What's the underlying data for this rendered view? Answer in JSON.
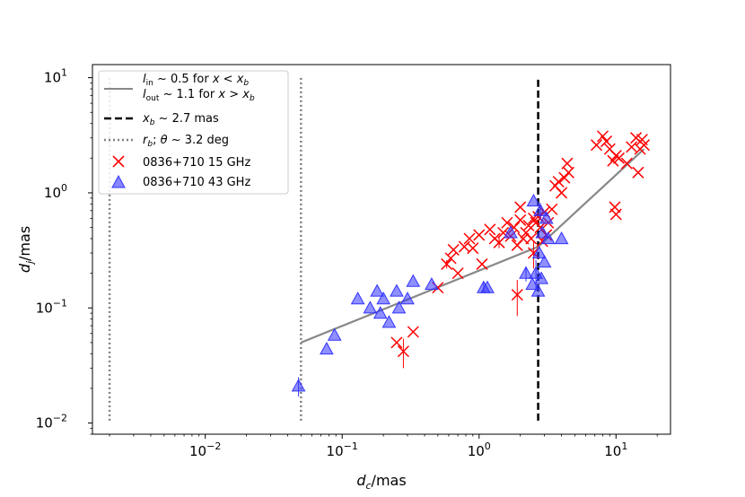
{
  "chart_data": {
    "type": "scatter",
    "xscale": "log",
    "yscale": "log",
    "xlim": [
      0.0015,
      25
    ],
    "ylim": [
      0.008,
      13
    ],
    "xlabel": "d_c/mas",
    "ylabel": "d_j/mas",
    "xticks": [
      {
        "value": 0.01,
        "mant": "10",
        "exp": "−2"
      },
      {
        "value": 0.1,
        "mant": "10",
        "exp": "−1"
      },
      {
        "value": 1,
        "mant": "10",
        "exp": "0"
      },
      {
        "value": 10,
        "mant": "10",
        "exp": "1"
      }
    ],
    "yticks": [
      {
        "value": 0.01,
        "mant": "10",
        "exp": "−2"
      },
      {
        "value": 0.1,
        "mant": "10",
        "exp": "−1"
      },
      {
        "value": 1,
        "mant": "10",
        "exp": "0"
      },
      {
        "value": 10,
        "mant": "10",
        "exp": "1"
      }
    ],
    "legend_position": "upper-left",
    "legend": {
      "fit_line1": "l_in ~ 0.5 for x < x_b",
      "fit_line2": "l_out ~ 1.1 for x > x_b",
      "break_label": "x_b ~ 2.7 mas",
      "rb_label": "r_b; θ ~ 3.2 deg",
      "series15": "0836+710 15 GHz",
      "series43": "0836+710 43 GHz"
    },
    "colors": {
      "fit": "#888888",
      "break": "#000000",
      "rb": "#808080",
      "s15": "#ff0000",
      "s43": "#3333ff"
    },
    "fit_line": {
      "x": [
        0.05,
        2.7,
        16
      ],
      "y": [
        0.05,
        0.34,
        2.4
      ]
    },
    "break_x": 2.7,
    "break_ylim": [
      0.0105,
      10
    ],
    "rb_lines": [
      {
        "x": 0.002,
        "ylim": [
          0.0105,
          10
        ]
      },
      {
        "x": 0.05,
        "ylim": [
          0.0105,
          10
        ]
      }
    ],
    "series_15GHz": {
      "name": "0836+710 15 GHz",
      "points": [
        [
          0.25,
          0.05,
          0
        ],
        [
          0.28,
          0.042,
          0.012
        ],
        [
          0.33,
          0.062,
          0
        ],
        [
          0.5,
          0.15,
          0
        ],
        [
          0.58,
          0.24,
          0.02
        ],
        [
          0.62,
          0.27,
          0
        ],
        [
          0.65,
          0.32,
          0
        ],
        [
          0.7,
          0.2,
          0
        ],
        [
          0.78,
          0.34,
          0
        ],
        [
          0.85,
          0.4,
          0
        ],
        [
          0.9,
          0.33,
          0
        ],
        [
          1.0,
          0.43,
          0
        ],
        [
          1.05,
          0.24,
          0
        ],
        [
          1.2,
          0.48,
          0
        ],
        [
          1.3,
          0.4,
          0
        ],
        [
          1.4,
          0.37,
          0.04
        ],
        [
          1.5,
          0.45,
          0
        ],
        [
          1.6,
          0.55,
          0
        ],
        [
          1.7,
          0.42,
          0
        ],
        [
          1.8,
          0.5,
          0
        ],
        [
          1.9,
          0.35,
          0
        ],
        [
          1.9,
          0.13,
          0.045
        ],
        [
          2.0,
          0.58,
          0
        ],
        [
          2.0,
          0.75,
          0
        ],
        [
          2.1,
          0.4,
          0
        ],
        [
          2.2,
          0.45,
          0
        ],
        [
          2.3,
          0.52,
          0
        ],
        [
          2.4,
          0.4,
          0
        ],
        [
          2.5,
          0.6,
          0
        ],
        [
          2.5,
          0.3,
          0.08
        ],
        [
          2.6,
          0.55,
          0
        ],
        [
          2.7,
          0.62,
          0
        ],
        [
          2.8,
          0.5,
          0
        ],
        [
          2.9,
          0.38,
          0
        ],
        [
          3.0,
          0.68,
          0
        ],
        [
          3.1,
          0.43,
          0
        ],
        [
          3.2,
          0.55,
          0
        ],
        [
          3.4,
          0.72,
          0
        ],
        [
          3.6,
          1.15,
          0
        ],
        [
          3.8,
          1.25,
          0
        ],
        [
          4.0,
          1.0,
          0
        ],
        [
          4.2,
          1.35,
          0
        ],
        [
          4.4,
          1.8,
          0
        ],
        [
          4.5,
          1.5,
          0
        ],
        [
          7.2,
          2.6,
          0
        ],
        [
          8.0,
          3.1,
          0
        ],
        [
          8.5,
          2.8,
          0
        ],
        [
          9.0,
          2.4,
          0
        ],
        [
          9.5,
          1.9,
          0
        ],
        [
          10.0,
          2.1,
          0
        ],
        [
          10.0,
          0.65,
          0
        ],
        [
          9.8,
          0.75,
          0
        ],
        [
          10.5,
          2.0,
          0
        ],
        [
          12.0,
          1.8,
          0
        ],
        [
          13.0,
          2.5,
          0
        ],
        [
          14.0,
          3.0,
          0
        ],
        [
          14.5,
          1.5,
          0
        ],
        [
          15.0,
          2.4,
          0
        ],
        [
          15.5,
          2.9,
          0
        ],
        [
          16.0,
          2.6,
          0
        ]
      ]
    },
    "series_43GHz": {
      "name": "0836+710 43 GHz",
      "points": [
        [
          0.048,
          0.021,
          0.004
        ],
        [
          0.077,
          0.044,
          0
        ],
        [
          0.088,
          0.058,
          0
        ],
        [
          0.13,
          0.12,
          0
        ],
        [
          0.16,
          0.1,
          0
        ],
        [
          0.18,
          0.14,
          0
        ],
        [
          0.19,
          0.09,
          0
        ],
        [
          0.2,
          0.12,
          0
        ],
        [
          0.22,
          0.075,
          0
        ],
        [
          0.25,
          0.14,
          0
        ],
        [
          0.26,
          0.1,
          0
        ],
        [
          0.3,
          0.12,
          0
        ],
        [
          0.33,
          0.17,
          0
        ],
        [
          0.45,
          0.16,
          0
        ],
        [
          1.08,
          0.15,
          0.015
        ],
        [
          1.15,
          0.15,
          0
        ],
        [
          1.7,
          0.45,
          0
        ],
        [
          2.2,
          0.2,
          0.03
        ],
        [
          2.45,
          0.16,
          0
        ],
        [
          2.5,
          0.85,
          0
        ],
        [
          2.6,
          0.2,
          0.06
        ],
        [
          2.7,
          0.14,
          0
        ],
        [
          2.75,
          0.3,
          0
        ],
        [
          2.8,
          0.7,
          0.12
        ],
        [
          2.85,
          0.18,
          0
        ],
        [
          2.9,
          0.45,
          0
        ],
        [
          3.0,
          0.25,
          0
        ],
        [
          3.1,
          0.6,
          0
        ],
        [
          3.2,
          0.4,
          0
        ],
        [
          4.0,
          0.4,
          0
        ]
      ]
    }
  }
}
